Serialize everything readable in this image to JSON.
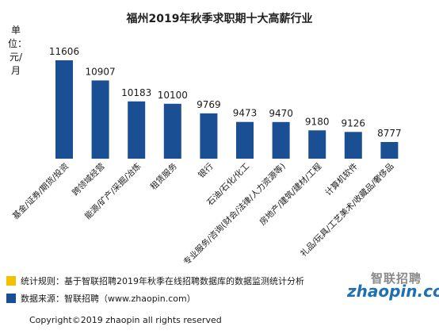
{
  "chart_data": {
    "type": "bar",
    "title": "福州2019年秋季求职期十大高薪行业",
    "ylabel": "单位：元/月",
    "categories": [
      "基金/证券/期货/投资",
      "跨领域经营",
      "能源/矿产/采掘/冶炼",
      "租赁服务",
      "银行",
      "石油/石化/化工",
      "专业服务/咨询(财会/法律/人力资源等)",
      "房地产/建筑/建材/工程",
      "计算机软件",
      "礼品/玩具/工艺美术/收藏品/奢侈品"
    ],
    "values": [
      11606,
      10907,
      10183,
      10100,
      9769,
      9473,
      9470,
      9180,
      9126,
      8777
    ],
    "colors": {
      "bar": "#1b4f93"
    },
    "grid": false
  },
  "legend": {
    "rule_color": "#f2c200",
    "rule_text": "统计规则：基于智联招聘2019年秋季在线招聘数据库的数据监测统计分析",
    "source_color": "#1b4f93",
    "source_text": "数据来源：智联招聘（www.zhaopin.com）"
  },
  "copyright": "Copyright©2019 zhaopin all rights reserved",
  "logo": {
    "cn": "智联招聘",
    "en": "zhaopin.com"
  }
}
